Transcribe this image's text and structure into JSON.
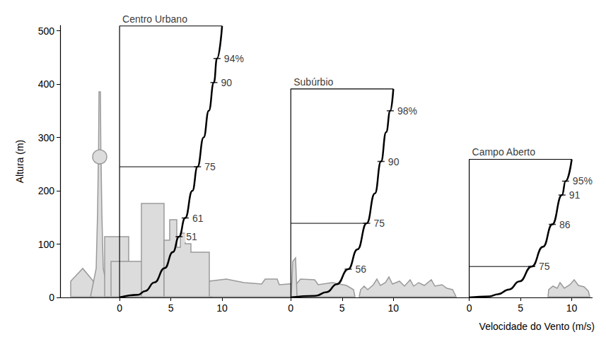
{
  "chart_data": [
    {
      "type": "line",
      "title": "Centro Urbano",
      "color": "#000000",
      "grid": false,
      "ylabel": "Altura (m)",
      "x": [
        0,
        1.8,
        2.5,
        3.4,
        4.4,
        5.2,
        5.8,
        6.4,
        7.1,
        7.6,
        8.2,
        8.7,
        9.2,
        9.5,
        10.0
      ],
      "values": [
        0,
        5,
        12,
        28,
        55,
        85,
        114,
        149,
        200,
        245,
        300,
        350,
        403,
        448,
        509
      ],
      "xlim": [
        -5.8,
        12
      ],
      "xticks": [
        0,
        5,
        10
      ],
      "ylim": [
        0,
        510
      ],
      "yticks": [
        0,
        100,
        200,
        300,
        400,
        500
      ],
      "annotations": [
        {
          "text": "94%",
          "x": 9.5,
          "y": 448
        },
        {
          "text": "90",
          "x": 9.2,
          "y": 403
        },
        {
          "text": "75",
          "x": 7.6,
          "y": 245,
          "line": true
        },
        {
          "text": "61",
          "x": 6.4,
          "y": 149
        },
        {
          "text": "51",
          "x": 5.8,
          "y": 114
        }
      ]
    },
    {
      "type": "line",
      "title": "Subúrbio",
      "color": "#000000",
      "grid": false,
      "tick_labels": "x",
      "x": [
        0,
        2.4,
        3.5,
        4.5,
        5.6,
        6.5,
        7.4,
        8.2,
        8.8,
        9.3,
        9.7,
        10.0
      ],
      "values": [
        0,
        3,
        10,
        25,
        53,
        90,
        139,
        195,
        255,
        310,
        350,
        391
      ],
      "xlim": [
        -4.7,
        12.9
      ],
      "xticks": [
        0,
        5,
        10
      ],
      "ylim": [
        0,
        510
      ],
      "yticks": [
        0,
        100,
        200,
        300,
        400,
        500
      ],
      "annotations": [
        {
          "text": "98%",
          "x": 9.7,
          "y": 350
        },
        {
          "text": "90",
          "x": 8.8,
          "y": 255
        },
        {
          "text": "75",
          "x": 7.4,
          "y": 139,
          "line": true
        },
        {
          "text": "56",
          "x": 5.6,
          "y": 53
        }
      ]
    },
    {
      "type": "line",
      "title": "Campo Aberto",
      "color": "#000000",
      "grid": false,
      "tick_labels": "x",
      "xlabel": "Velocidade do Vento (m/s)",
      "x": [
        0,
        2.0,
        2.8,
        3.9,
        4.9,
        6.1,
        7.2,
        8.1,
        9.05,
        9.4,
        10.0
      ],
      "values": [
        0,
        2,
        6,
        15,
        30,
        58,
        95,
        137,
        192,
        218,
        259
      ],
      "xlim": [
        -4.5,
        12
      ],
      "xticks": [
        0,
        5,
        10
      ],
      "ylim": [
        0,
        510
      ],
      "yticks": [
        0,
        100,
        200,
        300,
        400,
        500
      ],
      "annotations": [
        {
          "text": "95%",
          "x": 9.4,
          "y": 218
        },
        {
          "text": "91",
          "x": 9.05,
          "y": 192
        },
        {
          "text": "86",
          "x": 8.1,
          "y": 137
        },
        {
          "text": "75",
          "x": 6.1,
          "y": 58,
          "line": true
        }
      ]
    }
  ]
}
